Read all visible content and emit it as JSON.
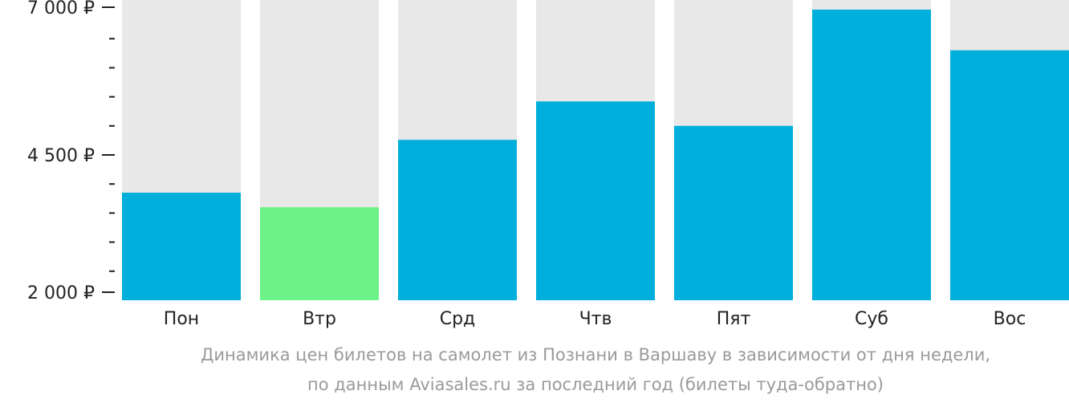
{
  "chart_data": {
    "type": "bar",
    "categories": [
      "Пон",
      "Втр",
      "Срд",
      "Чтв",
      "Пят",
      "Суб",
      "Вос"
    ],
    "values": [
      3850,
      3600,
      4760,
      5420,
      5000,
      7000,
      6300
    ],
    "ylim": [
      2000,
      7000
    ],
    "yticks": [
      {
        "value": 7000,
        "label": "7 000 ₽"
      },
      {
        "value": 4500,
        "label": "4 500 ₽"
      },
      {
        "value": 2000,
        "label": "2 000 ₽"
      }
    ],
    "minor_tick_step": 500,
    "highlight_index": 1,
    "grid": false,
    "legend": "none",
    "colors": {
      "bar": "#00afdb",
      "highlight": "#6cf286",
      "background_bar": "#e8e8e8",
      "axis": "#222222"
    }
  },
  "caption": {
    "line1": "Динамика цен билетов на самолет из Познани в Варшаву в зависимости от дня недели,",
    "line2": "по данным Aviasales.ru за последний год (билеты туда-обратно)"
  }
}
